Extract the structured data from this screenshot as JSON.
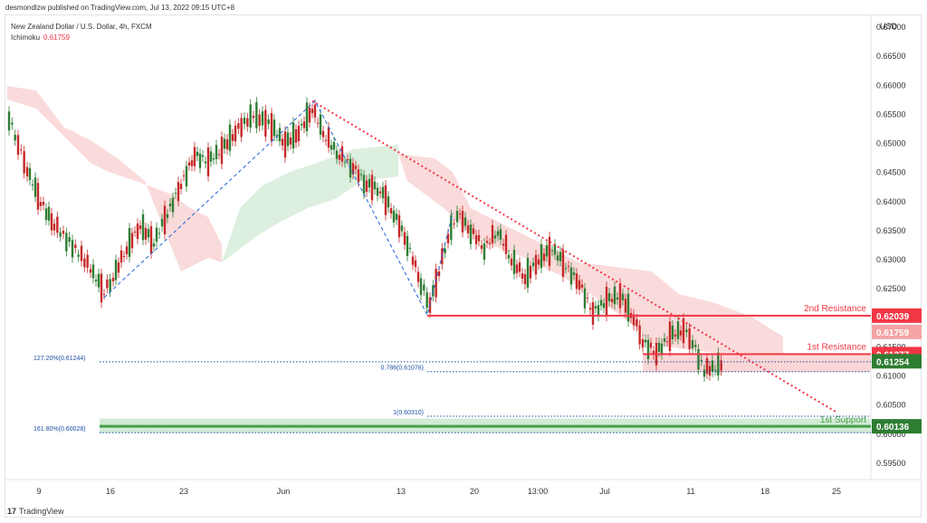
{
  "header": {
    "published_by": "desmondlzw published on TradingView.com, Jul 13, 2022 09:15 UTC+8"
  },
  "legend": {
    "symbol": "New Zealand Dollar / U.S. Dollar, 4h, FXCM",
    "indicator_name": "Ichimoku",
    "indicator_value": "0.61759"
  },
  "footer": {
    "brand": "TradingView",
    "logo_glyph": "17"
  },
  "colors": {
    "resistance": "#f23645",
    "support": "#43a047",
    "bull": "#26a69a",
    "up_candle": "#2e7d32",
    "down_candle": "#c62828",
    "cloud_bear": "#f8cfcf",
    "cloud_bull": "#d7ecd9",
    "fib_line": "#1e4fa3"
  },
  "chart_data": {
    "type": "candlestick",
    "axis_currency": "USD",
    "ylim": [
      0.593,
      0.674
    ],
    "y_ticks": [
      "0.67000",
      "0.66500",
      "0.66000",
      "0.65500",
      "0.65000",
      "0.64500",
      "0.64000",
      "0.63500",
      "0.63000",
      "0.62500",
      "0.62000",
      "0.61500",
      "0.61000",
      "0.60500",
      "0.60000",
      "0.59500"
    ],
    "x_ticks": [
      "9",
      "16",
      "23",
      "Jun",
      "13",
      "20",
      "13:00",
      "Jul",
      "11",
      "18",
      "25"
    ],
    "price_badges": [
      {
        "label": "0.62039",
        "value": 0.62039,
        "color": "#f23645"
      },
      {
        "label": "0.61759",
        "value": 0.61759,
        "color": "#f5a3a3"
      },
      {
        "label": "0.61377",
        "value": 0.61377,
        "color": "#f23645"
      },
      {
        "label": "0.61254",
        "value": 0.61254,
        "color": "#2e7d32"
      },
      {
        "label": "0.60136",
        "value": 0.60136,
        "color": "#2e7d32"
      }
    ],
    "levels": [
      {
        "name": "2nd Resistance",
        "value": 0.62039,
        "color": "#f23645"
      },
      {
        "name": "1st Resistance",
        "value": 0.61377,
        "color": "#f23645"
      },
      {
        "name": "1st Support",
        "value": 0.60136,
        "color": "#43a047"
      }
    ],
    "fib_labels": [
      {
        "text": "127.20%(0.61244)",
        "value": 0.61244
      },
      {
        "text": "0.786(0.61076)",
        "value": 0.61076
      },
      {
        "text": "1(0.60310)",
        "value": 0.6031
      },
      {
        "text": "161.80%(0.60028)",
        "value": 0.60028
      }
    ]
  }
}
